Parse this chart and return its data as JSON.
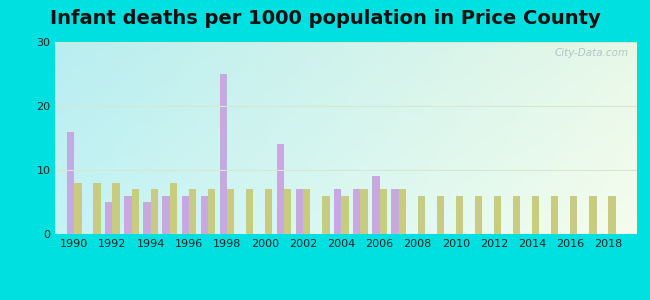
{
  "title": "Infant deaths per 1000 population in Price County",
  "years": [
    1990,
    1991,
    1992,
    1993,
    1994,
    1995,
    1996,
    1997,
    1998,
    1999,
    2000,
    2001,
    2002,
    2003,
    2004,
    2005,
    2006,
    2007,
    2008,
    2009,
    2010,
    2011,
    2012,
    2013,
    2014,
    2015,
    2016,
    2017,
    2018
  ],
  "price_county": [
    16,
    0,
    5,
    6,
    5,
    6,
    6,
    6,
    25,
    0,
    0,
    14,
    7,
    0,
    7,
    7,
    9,
    7,
    0,
    0,
    0,
    0,
    0,
    0,
    0,
    0,
    0,
    0,
    0
  ],
  "wisconsin": [
    8,
    8,
    8,
    7,
    7,
    8,
    7,
    7,
    7,
    7,
    7,
    7,
    7,
    6,
    6,
    7,
    7,
    7,
    6,
    6,
    6,
    6,
    6,
    6,
    6,
    6,
    6,
    6,
    6
  ],
  "price_color": "#c8a8e0",
  "wisconsin_color": "#c8cc80",
  "ylim": [
    0,
    30
  ],
  "yticks": [
    0,
    10,
    20,
    30
  ],
  "bar_width": 0.38,
  "title_fontsize": 14,
  "figure_bg": "#00e0e0",
  "watermark": "City-Data.com",
  "bg_gradient_left": "#b8eef0",
  "bg_gradient_right": "#e8f8e8",
  "grid_color": "#d8e8d0"
}
